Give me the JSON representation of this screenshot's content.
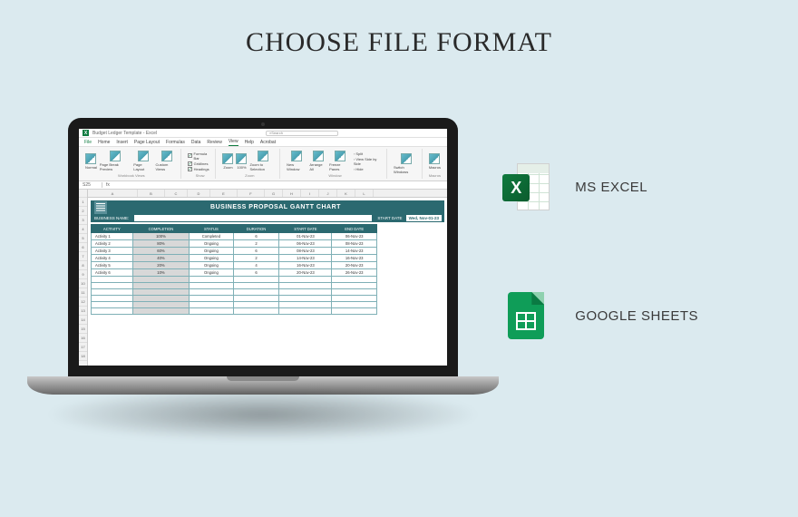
{
  "page": {
    "title": "CHOOSE FILE FORMAT",
    "background_color": "#dbeaef"
  },
  "options": [
    {
      "id": "ms-excel",
      "label": "MS EXCEL",
      "icon": "excel",
      "brand_color": "#107c41"
    },
    {
      "id": "google-sheets",
      "label": "GOOGLE SHEETS",
      "icon": "sheets",
      "brand_color": "#0f9d58"
    }
  ],
  "excel_window": {
    "app_title": "Budget Ledger Template - Excel",
    "search_placeholder": "Search",
    "menu": [
      "File",
      "Home",
      "Insert",
      "Page Layout",
      "Formulas",
      "Data",
      "Review",
      "View",
      "Help",
      "Acrobat"
    ],
    "active_menu": "View",
    "ribbon": {
      "groups": [
        {
          "label": "Workbook Views",
          "buttons": [
            "Normal",
            "Page Break Preview",
            "Page Layout",
            "Custom Views"
          ]
        },
        {
          "label": "Show",
          "checks": [
            {
              "label": "Formula Bar",
              "checked": true
            },
            {
              "label": "Gridlines",
              "checked": true
            },
            {
              "label": "Headings",
              "checked": true
            }
          ]
        },
        {
          "label": "Zoom",
          "buttons": [
            "Zoom",
            "100%",
            "Zoom to Selection"
          ]
        },
        {
          "label": "Window",
          "buttons": [
            "New Window",
            "Arrange All",
            "Freeze Panes"
          ],
          "side": [
            "Split",
            "View Side by Side",
            "Hide"
          ]
        },
        {
          "label": "",
          "buttons": [
            "Switch Windows"
          ]
        },
        {
          "label": "Macros",
          "buttons": [
            "Macros"
          ]
        }
      ]
    },
    "formula_bar": {
      "cell_ref": "S25",
      "value": ""
    },
    "columns": [
      "A",
      "B",
      "C",
      "D",
      "E",
      "F",
      "G",
      "H",
      "I",
      "J",
      "K",
      "L"
    ],
    "rows_visible": 18
  },
  "gantt": {
    "title": "BUSINESS PROPOSAL GANTT CHART",
    "business_name_label": "BUSINESS NAME:",
    "business_name_value": "",
    "start_date_label": "START DATE",
    "start_date_value": "Wed, Nov-01-23",
    "header_bg": "#2b6970",
    "header_fg": "#ffffff",
    "cell_border": "#7fb0b6",
    "completion_bg": "#d8d8d8",
    "columns": [
      "ACTIVITY",
      "COMPLETION",
      "STATUS",
      "DURATION",
      "START DATE",
      "END DATE"
    ],
    "rows": [
      {
        "activity": "Activity 1",
        "completion": "100%",
        "status": "Completed",
        "duration": "6",
        "start": "01-Nov-23",
        "end": "06-Nov-23"
      },
      {
        "activity": "Activity 2",
        "completion": "80%",
        "status": "Ongoing",
        "duration": "2",
        "start": "06-Nov-23",
        "end": "08-Nov-23"
      },
      {
        "activity": "Activity 3",
        "completion": "60%",
        "status": "Ongoing",
        "duration": "6",
        "start": "08-Nov-23",
        "end": "14-Nov-23"
      },
      {
        "activity": "Activity 4",
        "completion": "40%",
        "status": "Ongoing",
        "duration": "2",
        "start": "14-Nov-23",
        "end": "16-Nov-23"
      },
      {
        "activity": "Activity 5",
        "completion": "20%",
        "status": "Ongoing",
        "duration": "4",
        "start": "16-Nov-23",
        "end": "20-Nov-23"
      },
      {
        "activity": "Activity 6",
        "completion": "10%",
        "status": "Ongoing",
        "duration": "6",
        "start": "20-Nov-23",
        "end": "26-Nov-23"
      }
    ],
    "empty_rows": 6
  }
}
